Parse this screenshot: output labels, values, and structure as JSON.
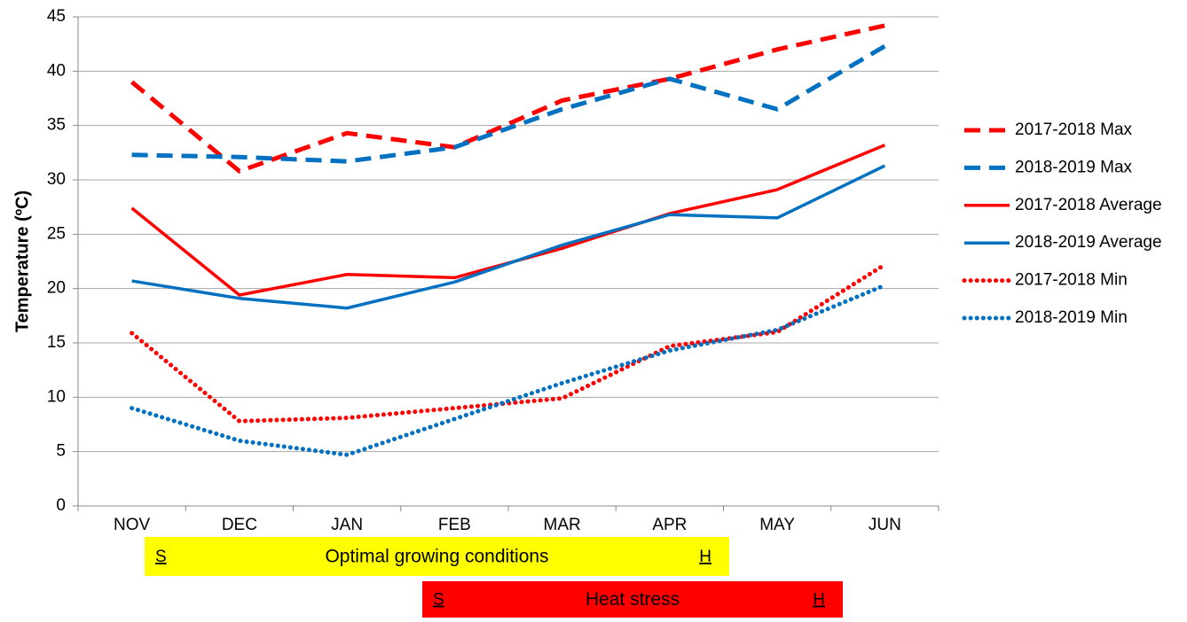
{
  "chart_data": {
    "type": "line",
    "y_label": "Temperature (ºC)",
    "categories": [
      "NOV",
      "DEC",
      "JAN",
      "FEB",
      "MAR",
      "APR",
      "MAY",
      "JUN"
    ],
    "series": [
      {
        "name": "2017-2018 Max",
        "color": "#ff0000",
        "style": "dashed",
        "values": [
          39,
          30.8,
          34.3,
          33,
          37.3,
          39.3,
          42,
          44.2
        ]
      },
      {
        "name": "2018-2019 Max",
        "color": "#0070c0",
        "style": "dashed",
        "values": [
          32.3,
          32.1,
          31.7,
          33,
          36.5,
          39.3,
          36.5,
          42.3
        ]
      },
      {
        "name": "2017-2018 Average",
        "color": "#ff0000",
        "style": "solid",
        "values": [
          27.4,
          19.4,
          21.3,
          21,
          23.7,
          26.9,
          29.1,
          33.2
        ]
      },
      {
        "name": "2018-2019 Average",
        "color": "#0070c0",
        "style": "solid",
        "values": [
          20.7,
          19.1,
          18.2,
          20.6,
          24,
          26.8,
          26.5,
          31.3
        ]
      },
      {
        "name": "2017-2018 Min",
        "color": "#ff0000",
        "style": "dotted",
        "values": [
          15.9,
          7.8,
          8.1,
          9,
          9.9,
          14.7,
          16,
          22.2
        ]
      },
      {
        "name": "2018-2019 Min",
        "color": "#0070c0",
        "style": "dotted",
        "values": [
          9,
          6,
          4.7,
          8,
          11.3,
          14.3,
          16.2,
          20.3
        ]
      }
    ],
    "ylim": [
      0,
      45
    ],
    "yticks": [
      0,
      5,
      10,
      15,
      20,
      25,
      30,
      35,
      40,
      45
    ],
    "grid": true,
    "legend": "right",
    "annotations": [
      {
        "start": "S",
        "label": "Optimal growing conditions",
        "end": "H",
        "color": "#ffff00"
      },
      {
        "start": "S",
        "label": "Heat stress",
        "end": "H",
        "color": "#ff0000"
      }
    ]
  }
}
